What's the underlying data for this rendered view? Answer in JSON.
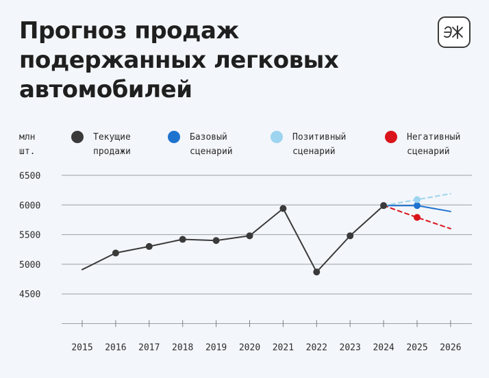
{
  "header": {
    "title": "Прогноз продаж подержанных легковых автомобилей",
    "logo_text": "ЭЖ"
  },
  "chart_data": {
    "type": "line",
    "unit_label": "млн\nшт.",
    "yticks": [
      6500,
      6000,
      5500,
      5000,
      4500
    ],
    "ylim": [
      4000,
      6500
    ],
    "x": [
      "2015",
      "2016",
      "2017",
      "2018",
      "2019",
      "2020",
      "2021",
      "2022",
      "2023",
      "2024",
      "2025",
      "2026"
    ],
    "grid": true,
    "series": [
      {
        "name": "Текущие\nпродажи",
        "color": "#3a3a3a",
        "style": "solid",
        "points": [
          [
            "2015",
            4910
          ],
          [
            "2016",
            5190
          ],
          [
            "2017",
            5300
          ],
          [
            "2018",
            5420
          ],
          [
            "2019",
            5400
          ],
          [
            "2020",
            5480
          ],
          [
            "2021",
            5940
          ],
          [
            "2022",
            4870
          ],
          [
            "2023",
            5480
          ],
          [
            "2024",
            5990
          ]
        ],
        "markers": [
          "2016",
          "2017",
          "2018",
          "2019",
          "2020",
          "2021",
          "2022",
          "2023",
          "2024"
        ]
      },
      {
        "name": "Базовый\nсценарий",
        "color": "#1e73cf",
        "style": "solid",
        "points": [
          [
            "2024",
            5990
          ],
          [
            "2025",
            5990
          ],
          [
            "2026",
            5890
          ]
        ],
        "markers": [
          "2025"
        ]
      },
      {
        "name": "Позитивный\nсценарий",
        "color": "#9dd4ef",
        "style": "dashed",
        "points": [
          [
            "2024",
            5990
          ],
          [
            "2025",
            6090
          ],
          [
            "2026",
            6190
          ]
        ],
        "markers": [
          "2025"
        ]
      },
      {
        "name": "Негативный\nсценарий",
        "color": "#d9141b",
        "style": "dashed",
        "points": [
          [
            "2024",
            5990
          ],
          [
            "2025",
            5790
          ],
          [
            "2026",
            5600
          ]
        ],
        "markers": [
          "2025"
        ]
      }
    ]
  }
}
